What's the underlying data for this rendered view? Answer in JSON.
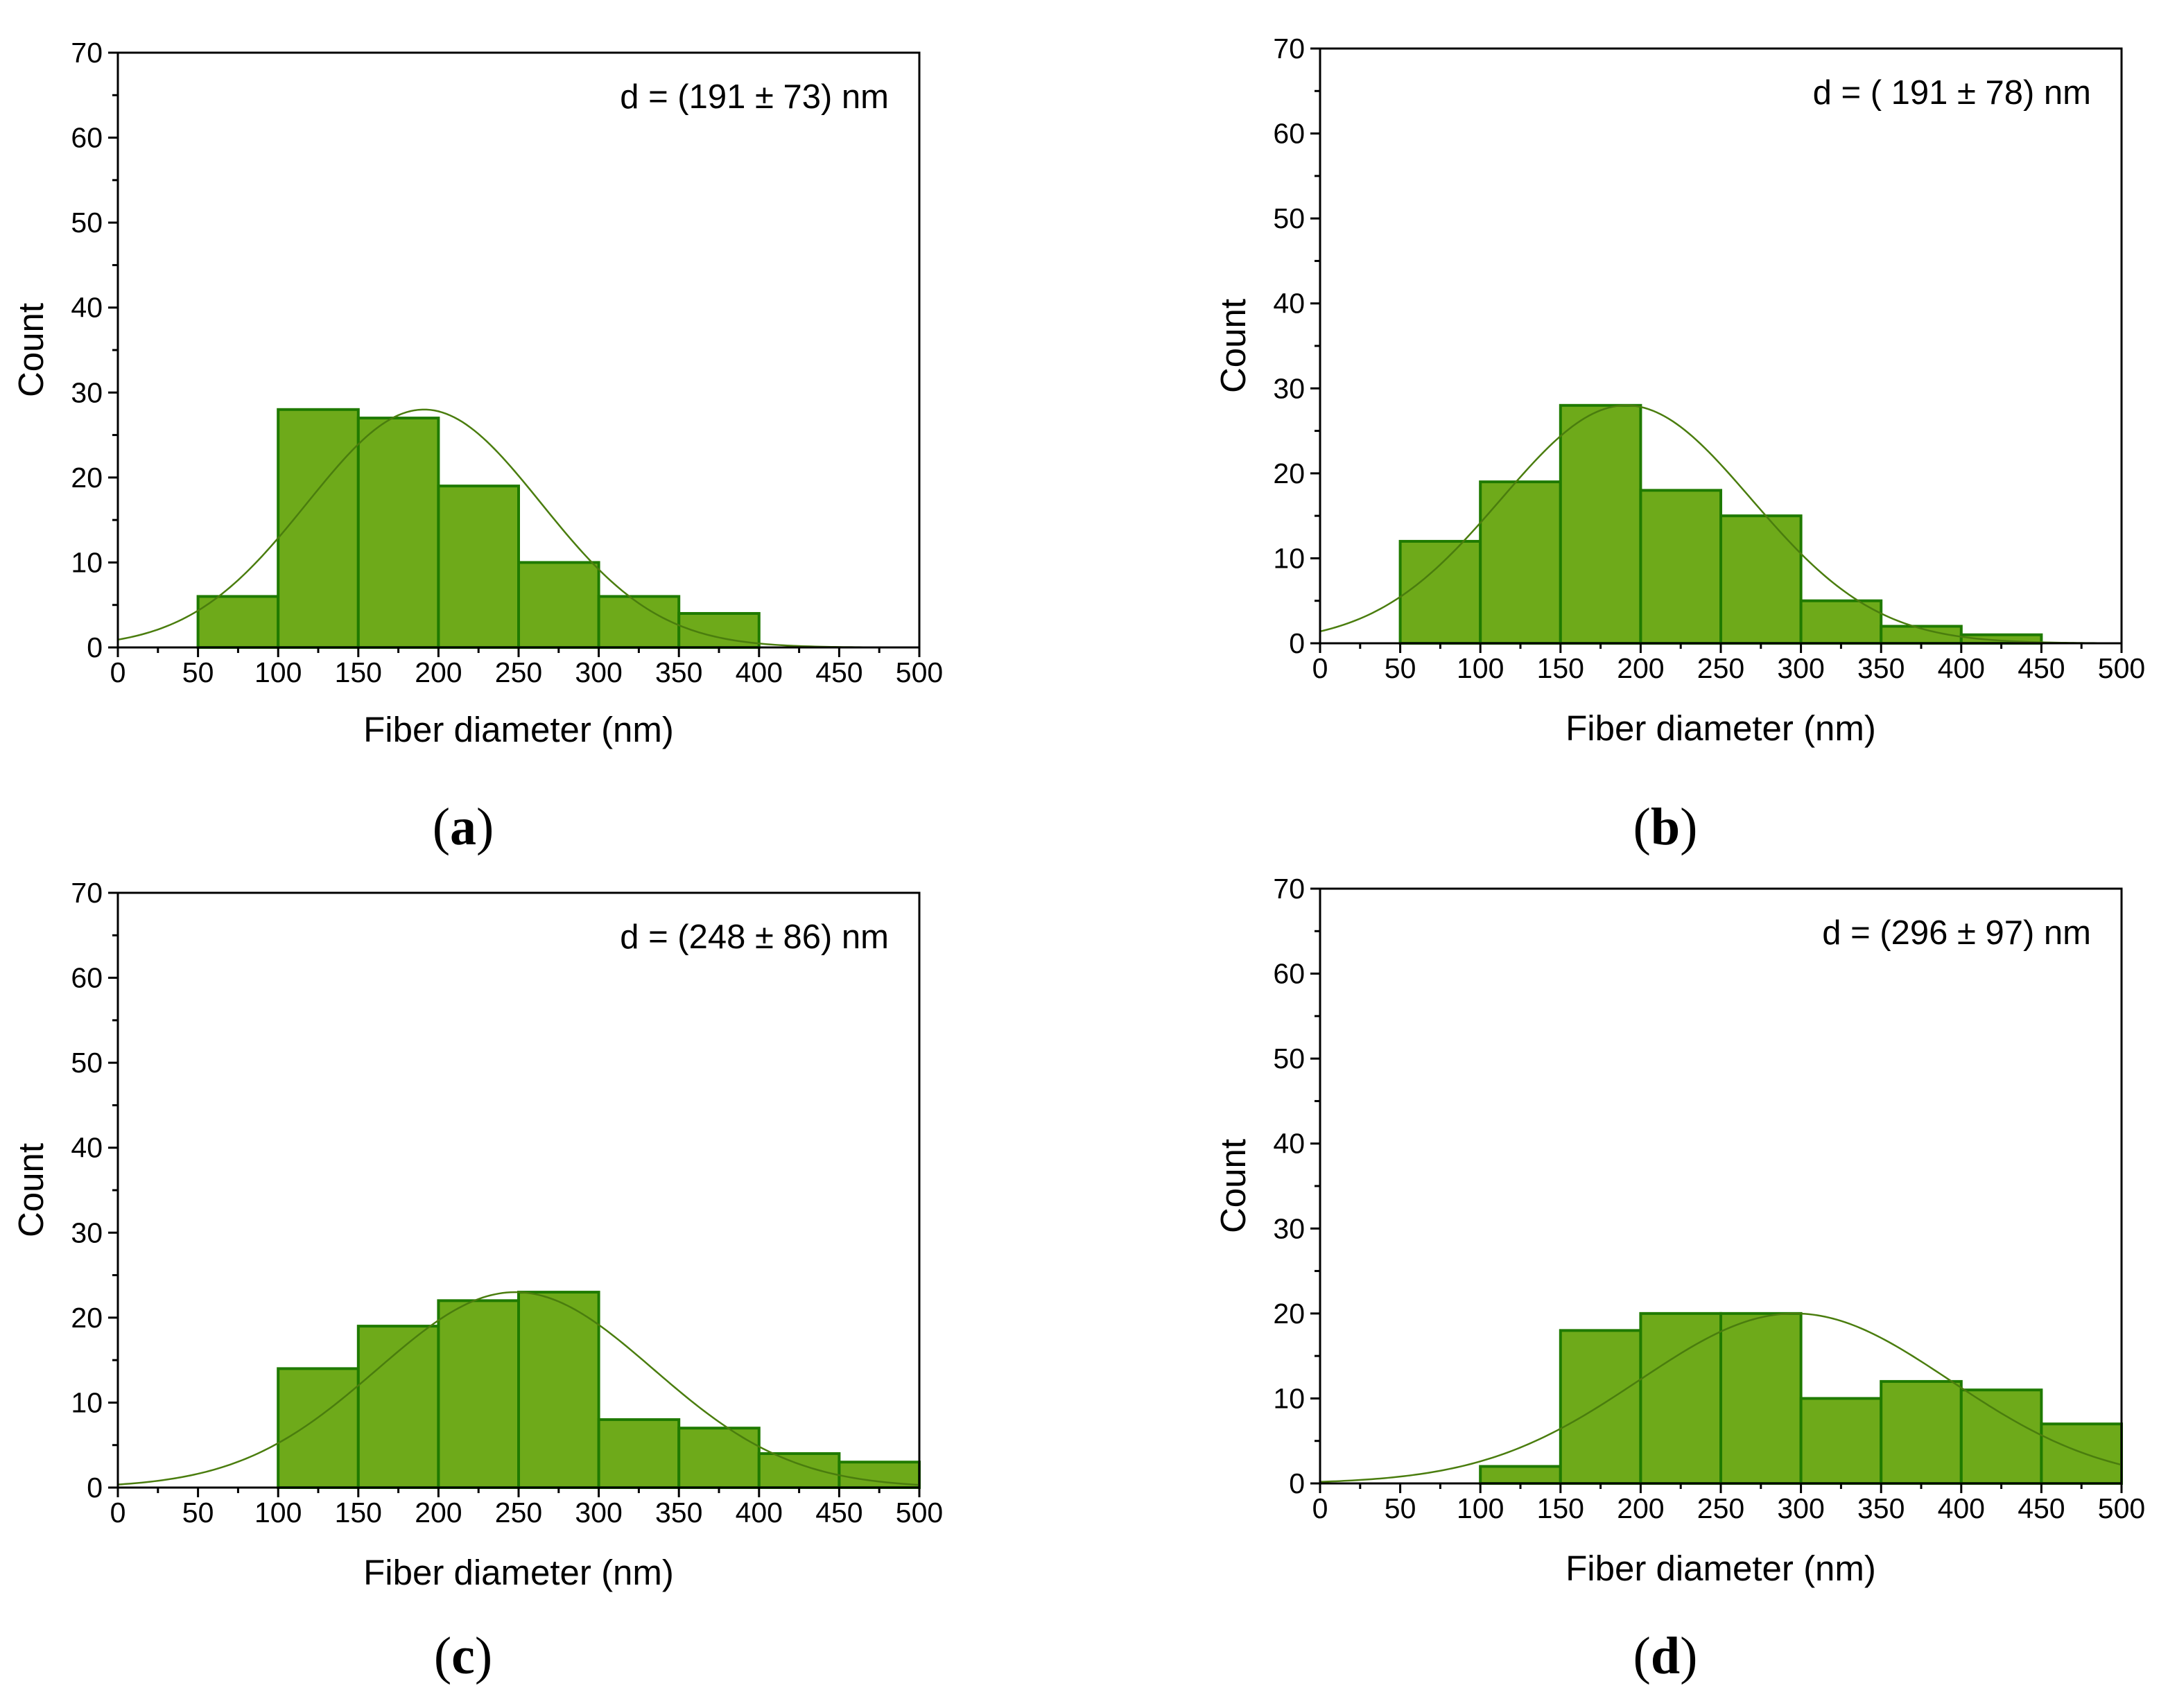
{
  "colors": {
    "bar_fill": "#6eaa1a",
    "bar_edge": "#1f7a00",
    "curve": "#4a7d0e",
    "axis": "#000000"
  },
  "chart_data": [
    {
      "type": "bar",
      "panel_label": "a",
      "title": "",
      "annotation": "d = (191 ± 73) nm",
      "xlabel": "Fiber diameter (nm)",
      "ylabel": "Count",
      "xlim": [
        0,
        500
      ],
      "ylim": [
        0,
        70
      ],
      "xticks": [
        0,
        50,
        100,
        150,
        200,
        250,
        300,
        350,
        400,
        450,
        500
      ],
      "yticks": [
        0,
        10,
        20,
        30,
        40,
        50,
        60,
        70
      ],
      "bin_width": 50,
      "bin_starts": [
        50,
        100,
        150,
        200,
        250,
        300,
        350
      ],
      "values": [
        6,
        28,
        27,
        19,
        10,
        6,
        4
      ],
      "fit": {
        "type": "gaussian",
        "mean": 191,
        "sigma": 73,
        "peak": 28
      }
    },
    {
      "type": "bar",
      "panel_label": "b",
      "title": "",
      "annotation": "d = ( 191 ± 78) nm",
      "xlabel": "Fiber diameter (nm)",
      "ylabel": "Count",
      "xlim": [
        0,
        500
      ],
      "ylim": [
        0,
        70
      ],
      "xticks": [
        0,
        50,
        100,
        150,
        200,
        250,
        300,
        350,
        400,
        450,
        500
      ],
      "yticks": [
        0,
        10,
        20,
        30,
        40,
        50,
        60,
        70
      ],
      "bin_width": 50,
      "bin_starts": [
        50,
        100,
        150,
        200,
        250,
        300,
        350,
        400
      ],
      "values": [
        12,
        19,
        28,
        18,
        15,
        5,
        2,
        1
      ],
      "fit": {
        "type": "gaussian",
        "mean": 191,
        "sigma": 78,
        "peak": 28
      }
    },
    {
      "type": "bar",
      "panel_label": "c",
      "title": "",
      "annotation": "d = (248 ± 86) nm",
      "xlabel": "Fiber diameter (nm)",
      "ylabel": "Count",
      "xlim": [
        0,
        500
      ],
      "ylim": [
        0,
        70
      ],
      "xticks": [
        0,
        50,
        100,
        150,
        200,
        250,
        300,
        350,
        400,
        450,
        500
      ],
      "yticks": [
        0,
        10,
        20,
        30,
        40,
        50,
        60,
        70
      ],
      "bin_width": 50,
      "bin_starts": [
        100,
        150,
        200,
        250,
        300,
        350,
        400,
        450
      ],
      "values": [
        14,
        19,
        22,
        23,
        8,
        7,
        4,
        3
      ],
      "fit": {
        "type": "gaussian",
        "mean": 248,
        "sigma": 86,
        "peak": 23
      }
    },
    {
      "type": "bar",
      "panel_label": "d",
      "title": "",
      "annotation": "d = (296 ± 97) nm",
      "xlabel": "Fiber diameter (nm)",
      "ylabel": "Count",
      "xlim": [
        0,
        500
      ],
      "ylim": [
        0,
        70
      ],
      "xticks": [
        0,
        50,
        100,
        150,
        200,
        250,
        300,
        350,
        400,
        450,
        500
      ],
      "yticks": [
        0,
        10,
        20,
        30,
        40,
        50,
        60,
        70
      ],
      "bin_width": 50,
      "bin_starts": [
        100,
        150,
        200,
        250,
        300,
        350,
        400,
        450
      ],
      "values": [
        2,
        18,
        20,
        20,
        10,
        12,
        11,
        7
      ],
      "fit": {
        "type": "gaussian",
        "mean": 296,
        "sigma": 97,
        "peak": 20
      }
    }
  ]
}
